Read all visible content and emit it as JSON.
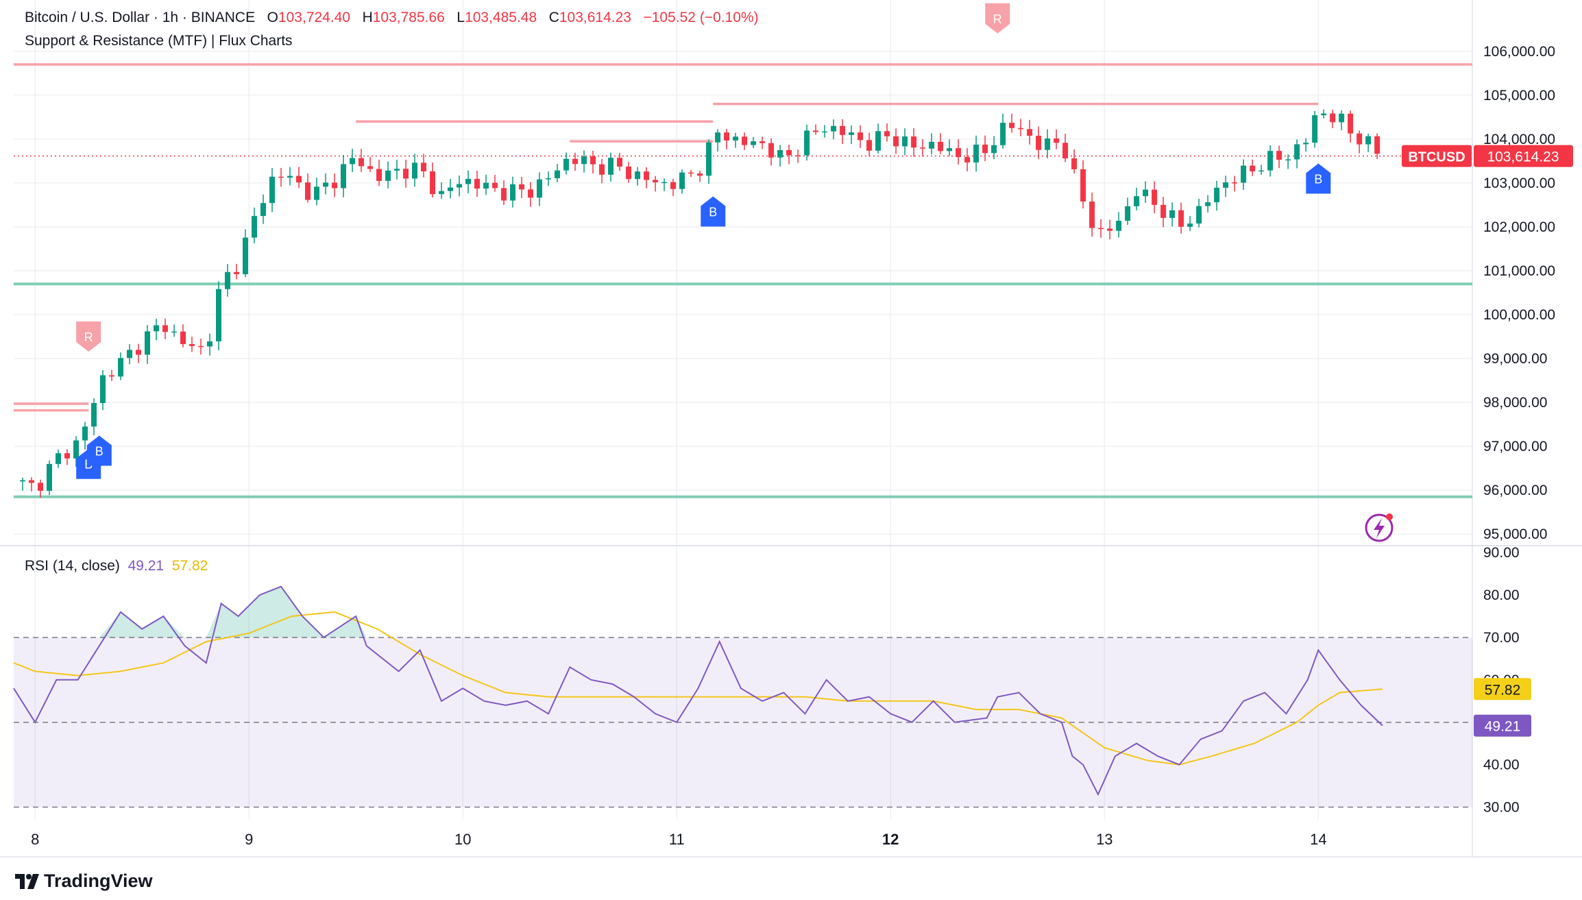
{
  "header": {
    "symbol": "Bitcoin / U.S. Dollar · 1h · BINANCE",
    "o_label": "O",
    "o_value": "103,724.40",
    "h_label": "H",
    "h_value": "103,785.66",
    "l_label": "L",
    "l_value": "103,485.48",
    "c_label": "C",
    "c_value": "103,614.23",
    "change": "−105.52 (−0.10%)",
    "indicator": "Support & Resistance (MTF) | Flux Charts",
    "rsi_label": "RSI (14, close)",
    "rsi_value": "49.21",
    "rsi_ma_value": "57.82"
  },
  "brand": {
    "name": "TradingView"
  },
  "colors": {
    "up": "#089981",
    "down": "#f23645",
    "resistance": "#f7a1a8",
    "support": "#7fcdb6",
    "rsi": "#7e57c2",
    "rsi_ma": "#f5c518",
    "buy": "#2962ff"
  },
  "chart_data": [
    {
      "type": "candlestick",
      "title": "Bitcoin / U.S. Dollar · 1h · BINANCE",
      "y_range": [
        94800,
        106700
      ],
      "y_ticks": [
        "95,000.00",
        "96,000.00",
        "97,000.00",
        "98,000.00",
        "99,000.00",
        "100,000.00",
        "101,000.00",
        "102,000.00",
        "103,000.00",
        "104,000.00",
        "105,000.00",
        "106,000.00"
      ],
      "x_labels": [
        "8",
        "9",
        "10",
        "11",
        "12",
        "13",
        "14"
      ],
      "x_range_days": [
        7.9,
        14.72
      ],
      "last_price_label": "BTCUSD",
      "last_price": "103,614.23",
      "close_path": [
        [
          7.9,
          96200
        ],
        [
          8.0,
          96050
        ],
        [
          8.1,
          96700
        ],
        [
          8.2,
          97100
        ],
        [
          8.26,
          97700
        ],
        [
          8.3,
          98500
        ],
        [
          8.4,
          98900
        ],
        [
          8.5,
          99400
        ],
        [
          8.6,
          99800
        ],
        [
          8.7,
          99300
        ],
        [
          8.8,
          99200
        ],
        [
          8.87,
          100700
        ],
        [
          8.95,
          101200
        ],
        [
          9.05,
          102500
        ],
        [
          9.12,
          103200
        ],
        [
          9.2,
          103100
        ],
        [
          9.3,
          102700
        ],
        [
          9.4,
          103100
        ],
        [
          9.5,
          103600
        ],
        [
          9.6,
          103100
        ],
        [
          9.7,
          103300
        ],
        [
          9.8,
          103300
        ],
        [
          9.9,
          102700
        ],
        [
          10.0,
          103100
        ],
        [
          10.1,
          102900
        ],
        [
          10.2,
          102800
        ],
        [
          10.3,
          102800
        ],
        [
          10.4,
          103100
        ],
        [
          10.5,
          103600
        ],
        [
          10.6,
          103400
        ],
        [
          10.7,
          103400
        ],
        [
          10.8,
          103200
        ],
        [
          10.9,
          103000
        ],
        [
          11.0,
          103000
        ],
        [
          11.1,
          103300
        ],
        [
          11.2,
          104200
        ],
        [
          11.3,
          103900
        ],
        [
          11.4,
          103900
        ],
        [
          11.5,
          103500
        ],
        [
          11.6,
          104000
        ],
        [
          11.7,
          104300
        ],
        [
          11.8,
          104100
        ],
        [
          11.9,
          103900
        ],
        [
          12.0,
          104100
        ],
        [
          12.1,
          103800
        ],
        [
          12.2,
          103900
        ],
        [
          12.3,
          103600
        ],
        [
          12.45,
          103700
        ],
        [
          12.5,
          104200
        ],
        [
          12.6,
          104300
        ],
        [
          12.7,
          103800
        ],
        [
          12.8,
          104000
        ],
        [
          12.85,
          103200
        ],
        [
          12.9,
          102600
        ],
        [
          12.97,
          101800
        ],
        [
          13.05,
          102000
        ],
        [
          13.15,
          102800
        ],
        [
          13.25,
          102500
        ],
        [
          13.35,
          102000
        ],
        [
          13.45,
          102400
        ],
        [
          13.55,
          103000
        ],
        [
          13.65,
          103200
        ],
        [
          13.75,
          103500
        ],
        [
          13.85,
          103600
        ],
        [
          13.95,
          104000
        ],
        [
          14.0,
          104700
        ],
        [
          14.1,
          104400
        ],
        [
          14.2,
          104000
        ],
        [
          14.3,
          103614
        ]
      ],
      "support_levels": [
        {
          "price": 100700,
          "from_day": 7.9,
          "to_day": 14.72
        },
        {
          "price": 95850,
          "from_day": 7.9,
          "to_day": 14.72
        }
      ],
      "resistance_levels": [
        {
          "price": 105700,
          "from_day": 7.9,
          "to_day": 14.72
        },
        {
          "price": 104800,
          "from_day": 11.17,
          "to_day": 14.0
        },
        {
          "price": 104400,
          "from_day": 9.5,
          "to_day": 11.17
        },
        {
          "price": 103950,
          "from_day": 10.5,
          "to_day": 11.17
        },
        {
          "price": 97970,
          "from_day": 7.9,
          "to_day": 8.25
        },
        {
          "price": 97820,
          "from_day": 7.9,
          "to_day": 8.25
        }
      ],
      "markers": [
        {
          "label": "R",
          "day": 8.25,
          "price": 99500,
          "kind": "resistance"
        },
        {
          "label": "R",
          "day": 12.5,
          "price": 106750,
          "kind": "resistance"
        },
        {
          "label": "B",
          "day": 8.25,
          "price": 96600,
          "kind": "buy"
        },
        {
          "label": "B",
          "day": 8.3,
          "price": 96900,
          "kind": "buy"
        },
        {
          "label": "B",
          "day": 11.17,
          "price": 102350,
          "kind": "buy"
        },
        {
          "label": "B",
          "day": 14.0,
          "price": 103100,
          "kind": "buy"
        }
      ]
    },
    {
      "type": "line",
      "title": "RSI (14, close)",
      "y_range": [
        27,
        91
      ],
      "y_ticks": [
        "30.00",
        "40.00",
        "50.00",
        "60.00",
        "70.00",
        "80.00",
        "90.00"
      ],
      "band": [
        30,
        70
      ],
      "midline": 50,
      "overbought_fill_above": 70,
      "series": [
        {
          "name": "RSI",
          "color": "#7e57c2",
          "last": "49.21",
          "points": [
            [
              7.9,
              58
            ],
            [
              8.0,
              50
            ],
            [
              8.1,
              60
            ],
            [
              8.2,
              60
            ],
            [
              8.3,
              68
            ],
            [
              8.4,
              76
            ],
            [
              8.5,
              72
            ],
            [
              8.6,
              75
            ],
            [
              8.7,
              68
            ],
            [
              8.8,
              64
            ],
            [
              8.87,
              78
            ],
            [
              8.95,
              75
            ],
            [
              9.05,
              80
            ],
            [
              9.15,
              82
            ],
            [
              9.25,
              75
            ],
            [
              9.35,
              70
            ],
            [
              9.5,
              75
            ],
            [
              9.55,
              68
            ],
            [
              9.7,
              62
            ],
            [
              9.8,
              67
            ],
            [
              9.9,
              55
            ],
            [
              10.0,
              58
            ],
            [
              10.1,
              55
            ],
            [
              10.2,
              54
            ],
            [
              10.3,
              55
            ],
            [
              10.4,
              52
            ],
            [
              10.5,
              63
            ],
            [
              10.6,
              60
            ],
            [
              10.7,
              59
            ],
            [
              10.8,
              56
            ],
            [
              10.9,
              52
            ],
            [
              11.0,
              50
            ],
            [
              11.1,
              58
            ],
            [
              11.2,
              69
            ],
            [
              11.3,
              58
            ],
            [
              11.4,
              55
            ],
            [
              11.5,
              57
            ],
            [
              11.6,
              52
            ],
            [
              11.7,
              60
            ],
            [
              11.8,
              55
            ],
            [
              11.9,
              56
            ],
            [
              12.0,
              52
            ],
            [
              12.1,
              50
            ],
            [
              12.2,
              55
            ],
            [
              12.3,
              50
            ],
            [
              12.45,
              51
            ],
            [
              12.5,
              56
            ],
            [
              12.6,
              57
            ],
            [
              12.7,
              52
            ],
            [
              12.8,
              50
            ],
            [
              12.85,
              42
            ],
            [
              12.9,
              40
            ],
            [
              12.97,
              33
            ],
            [
              13.05,
              42
            ],
            [
              13.15,
              45
            ],
            [
              13.25,
              42
            ],
            [
              13.35,
              40
            ],
            [
              13.45,
              46
            ],
            [
              13.55,
              48
            ],
            [
              13.65,
              55
            ],
            [
              13.75,
              57
            ],
            [
              13.85,
              52
            ],
            [
              13.95,
              60
            ],
            [
              14.0,
              67
            ],
            [
              14.1,
              60
            ],
            [
              14.2,
              54
            ],
            [
              14.3,
              49.21
            ]
          ]
        },
        {
          "name": "RSI-based MA",
          "color": "#f5c518",
          "last": "57.82",
          "points": [
            [
              7.9,
              64
            ],
            [
              8.0,
              62
            ],
            [
              8.2,
              61
            ],
            [
              8.4,
              62
            ],
            [
              8.6,
              64
            ],
            [
              8.8,
              69
            ],
            [
              9.0,
              71
            ],
            [
              9.2,
              75
            ],
            [
              9.4,
              76
            ],
            [
              9.6,
              72
            ],
            [
              9.8,
              66
            ],
            [
              10.0,
              61
            ],
            [
              10.2,
              57
            ],
            [
              10.4,
              56
            ],
            [
              10.6,
              56
            ],
            [
              10.8,
              56
            ],
            [
              11.0,
              56
            ],
            [
              11.2,
              56
            ],
            [
              11.4,
              56
            ],
            [
              11.6,
              56
            ],
            [
              11.8,
              55
            ],
            [
              12.0,
              55
            ],
            [
              12.2,
              55
            ],
            [
              12.4,
              53
            ],
            [
              12.6,
              53
            ],
            [
              12.8,
              51
            ],
            [
              13.0,
              44
            ],
            [
              13.2,
              41
            ],
            [
              13.35,
              40
            ],
            [
              13.5,
              42
            ],
            [
              13.7,
              45
            ],
            [
              13.9,
              50
            ],
            [
              14.0,
              54
            ],
            [
              14.1,
              57
            ],
            [
              14.3,
              57.82
            ]
          ]
        }
      ]
    }
  ]
}
